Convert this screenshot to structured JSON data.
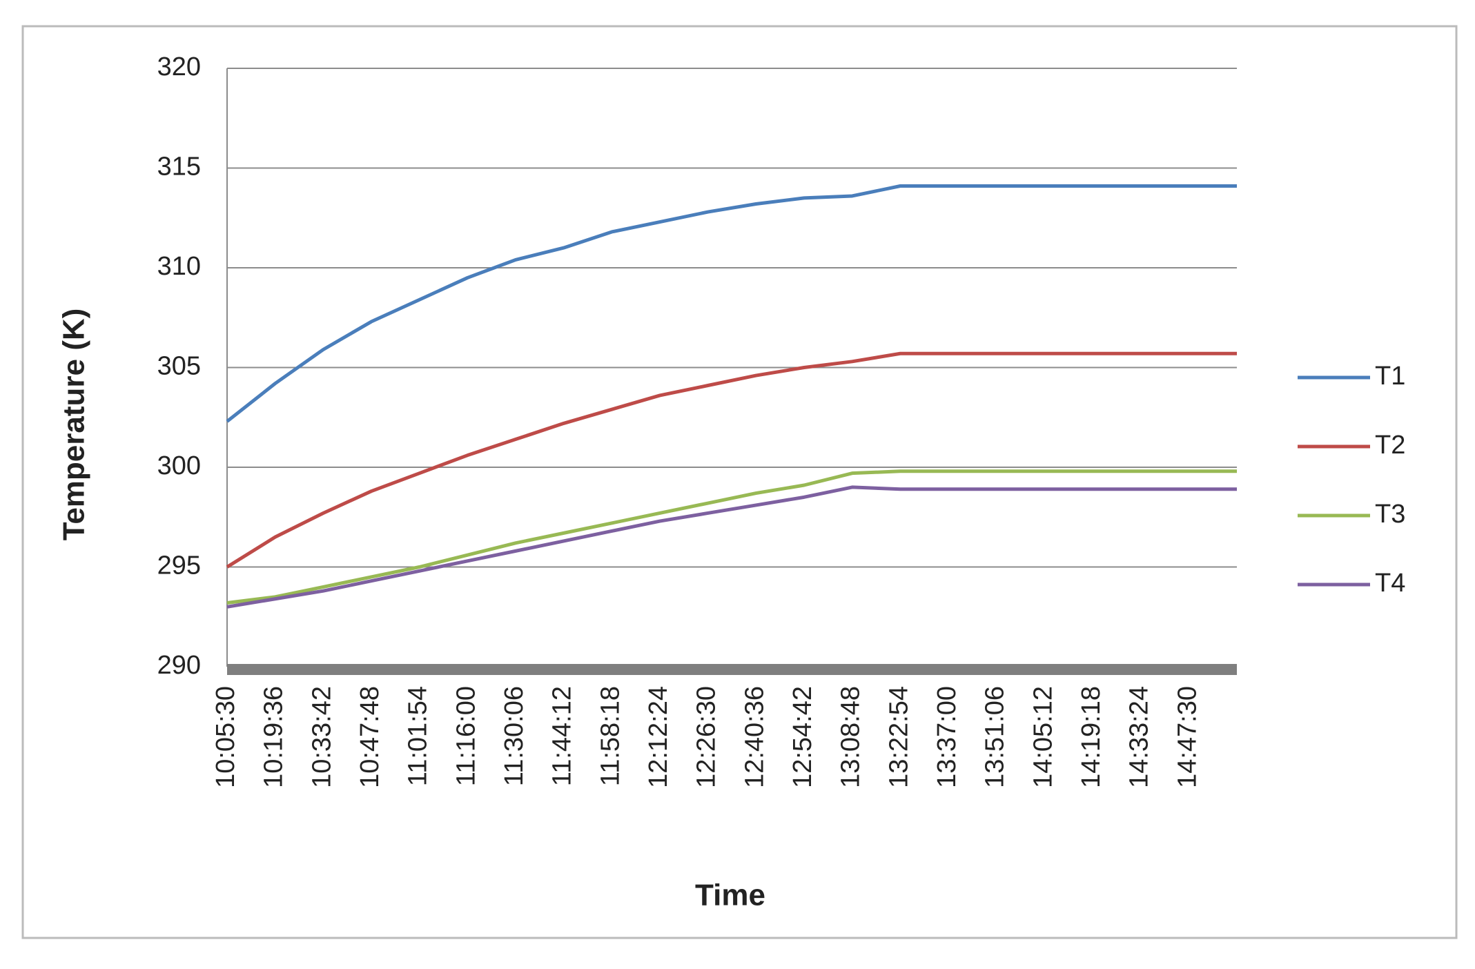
{
  "chart_data": {
    "type": "line",
    "x_label": "Time",
    "y_label": "Temperature (K)",
    "categories": [
      "10:05:30",
      "10:19:36",
      "10:33:42",
      "10:47:48",
      "11:01:54",
      "11:16:00",
      "11:30:06",
      "11:44:12",
      "11:58:18",
      "12:12:24",
      "12:26:30",
      "12:40:36",
      "12:54:42",
      "13:08:48",
      "13:22:54",
      "13:37:00",
      "13:51:06",
      "14:05:12",
      "14:19:18",
      "14:33:24",
      "14:47:30",
      null
    ],
    "series": [
      {
        "name": "T1",
        "color": "#4a7ebb",
        "values": [
          302.3,
          304.2,
          305.9,
          307.3,
          308.4,
          309.5,
          310.4,
          311.0,
          311.8,
          312.3,
          312.8,
          313.2,
          313.5,
          313.6,
          314.1,
          314.1,
          314.1,
          314.1,
          314.1,
          314.1,
          314.1,
          314.1
        ]
      },
      {
        "name": "T2",
        "color": "#be4b48",
        "values": [
          295.0,
          296.5,
          297.7,
          298.8,
          299.7,
          300.6,
          301.4,
          302.2,
          302.9,
          303.6,
          304.1,
          304.6,
          305.0,
          305.3,
          305.7,
          305.7,
          305.7,
          305.7,
          305.7,
          305.7,
          305.7,
          305.7
        ]
      },
      {
        "name": "T3",
        "color": "#98b954",
        "values": [
          293.2,
          293.5,
          294.0,
          294.5,
          295.0,
          295.6,
          296.2,
          296.7,
          297.2,
          297.7,
          298.2,
          298.7,
          299.1,
          299.7,
          299.8,
          299.8,
          299.8,
          299.8,
          299.8,
          299.8,
          299.8,
          299.8
        ]
      },
      {
        "name": "T4",
        "color": "#7d60a0",
        "values": [
          293.0,
          293.4,
          293.8,
          294.3,
          294.8,
          295.3,
          295.8,
          296.3,
          296.8,
          297.3,
          297.7,
          298.1,
          298.5,
          299.0,
          298.9,
          298.9,
          298.9,
          298.9,
          298.9,
          298.9,
          298.9,
          298.9
        ]
      }
    ],
    "ylim": [
      290,
      320
    ],
    "yticks": [
      290,
      295,
      300,
      305,
      310,
      315,
      320
    ],
    "grid": true,
    "legend": "right"
  }
}
